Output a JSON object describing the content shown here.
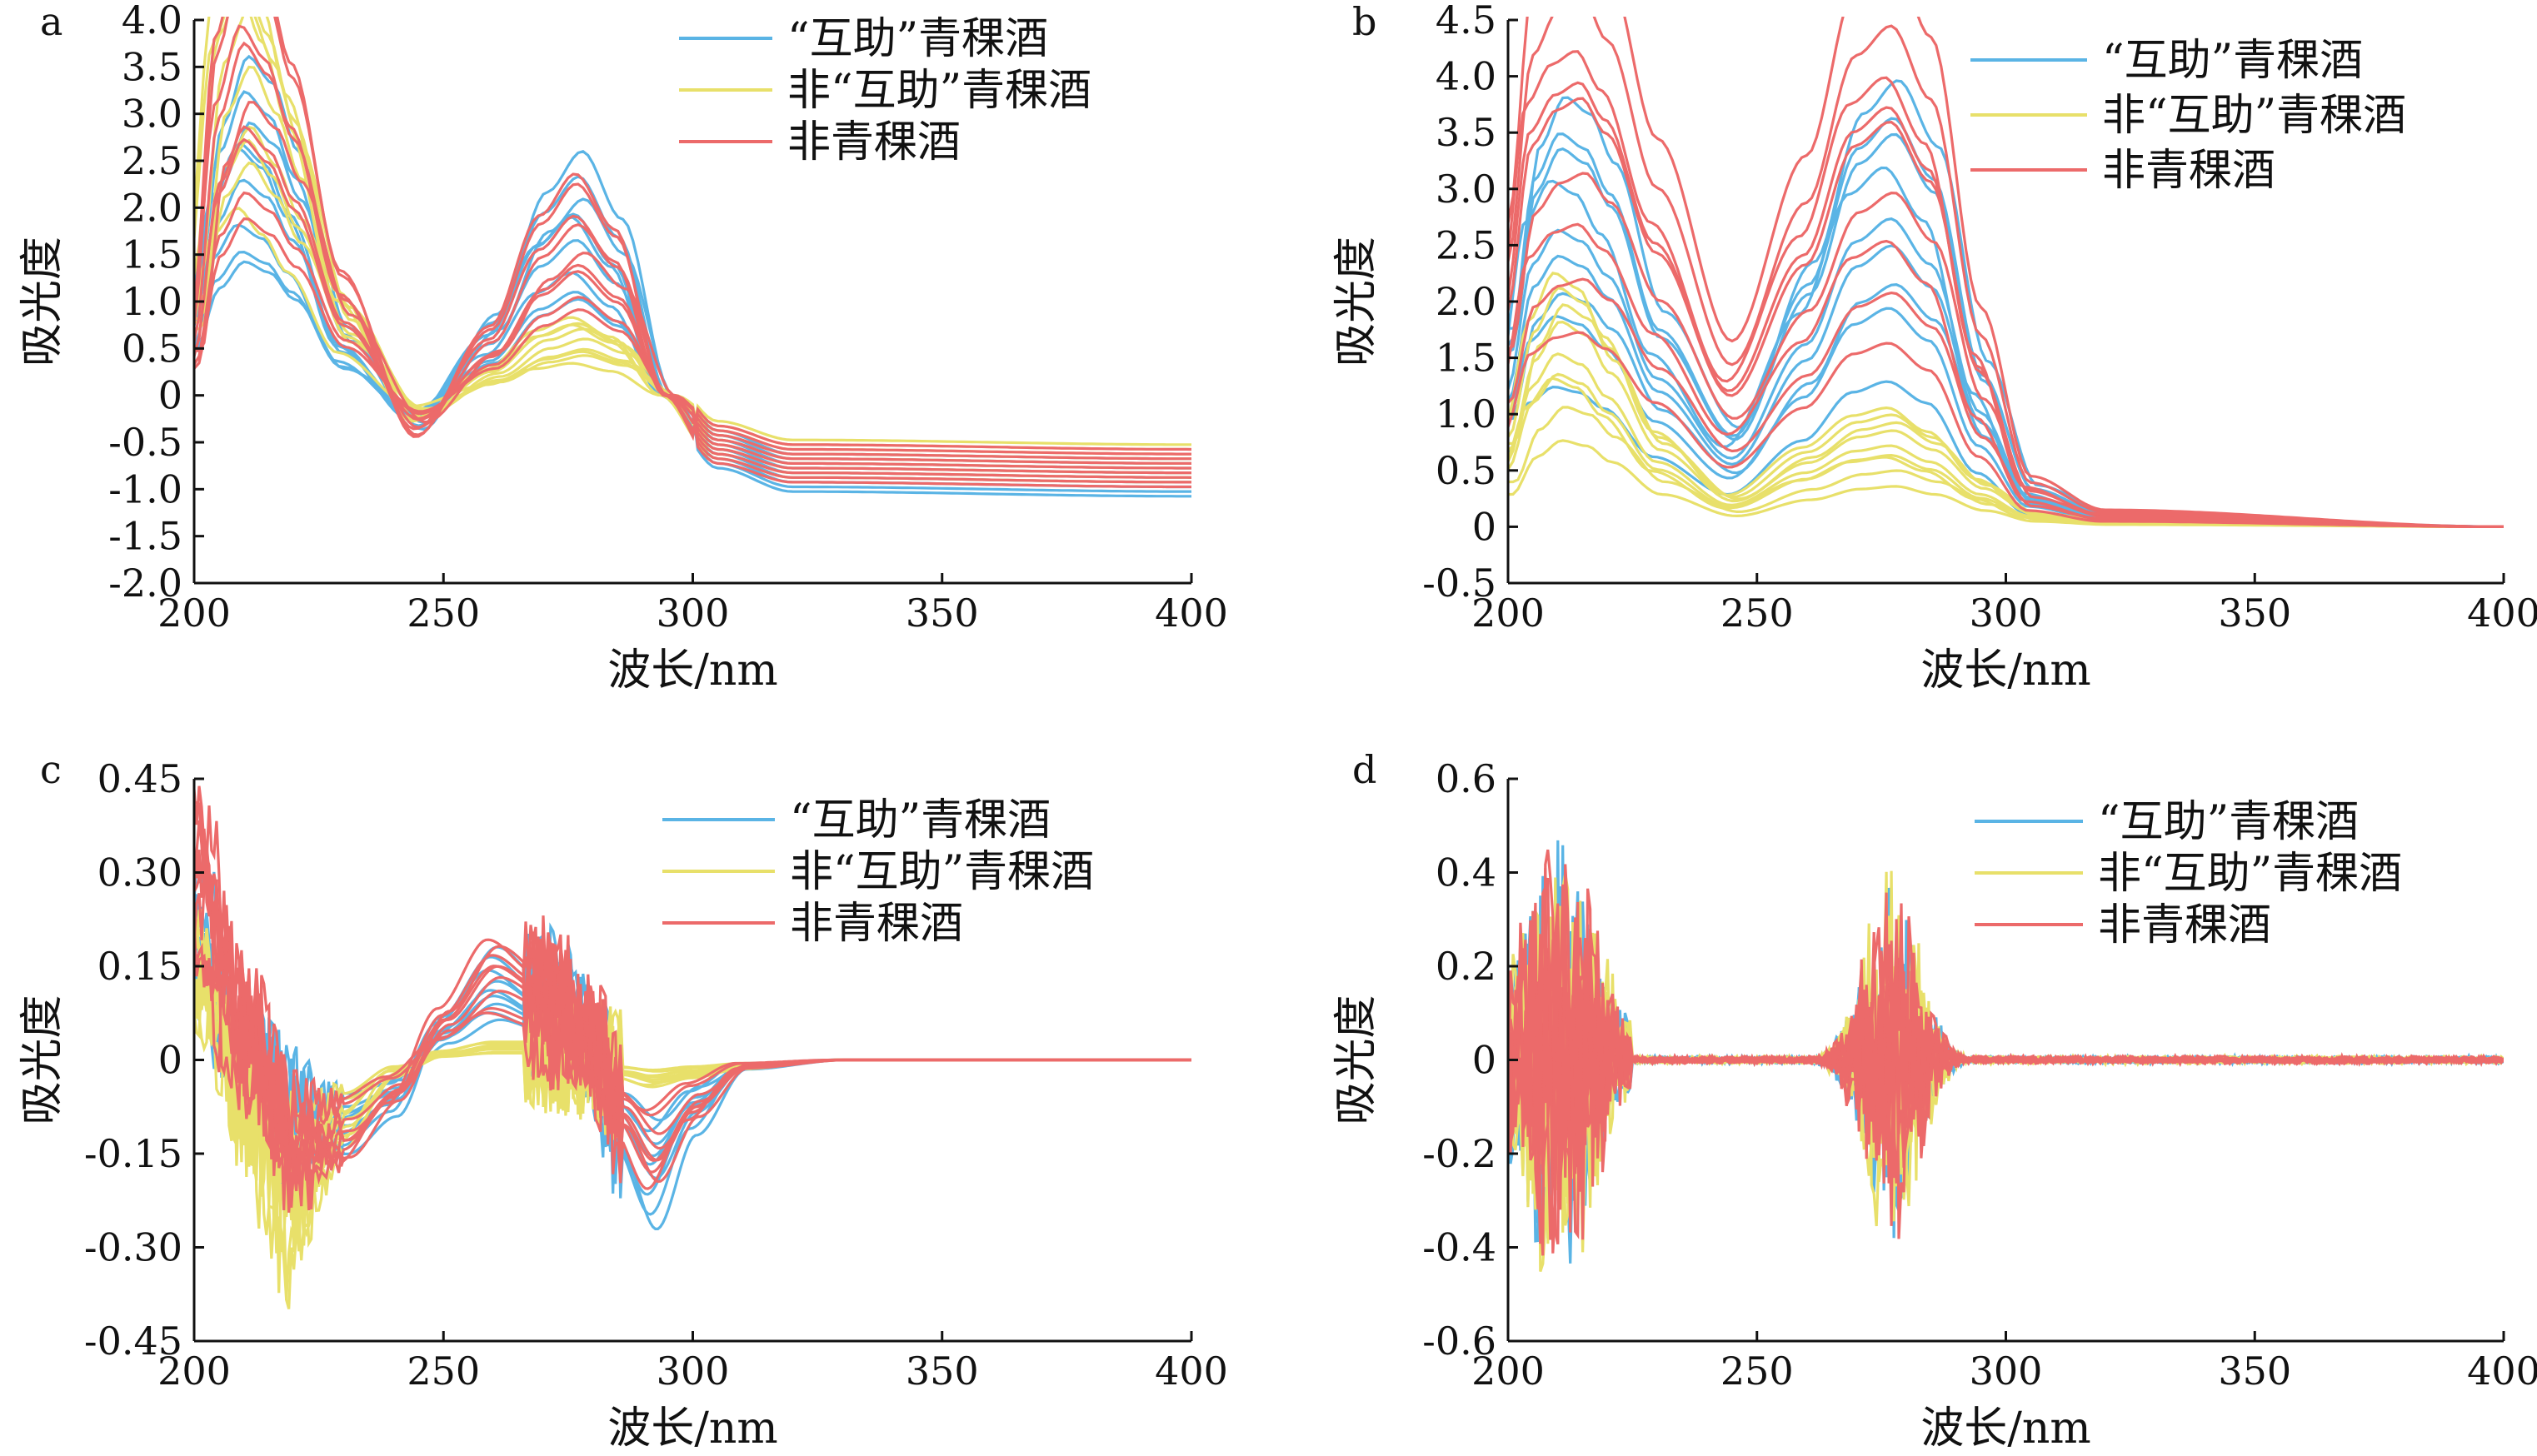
{
  "legend": [
    "“互助”青稞酒",
    "非“互助”青稞酒",
    "非青稞酒"
  ],
  "colors": {
    "huzhu": "#5ab4e5",
    "non_huzhu": "#e8e06a",
    "non_barley": "#ec6a6a"
  },
  "chart_data": [
    {
      "panel": "a",
      "type": "line",
      "xlabel": "波长/nm",
      "ylabel": "吸光度",
      "xlim": [
        200,
        400
      ],
      "ylim": [
        -2.0,
        4.0
      ],
      "xticks": [
        "200",
        "250",
        "300",
        "350",
        "400"
      ],
      "yticks": [
        "4.0",
        "3.5",
        "3.0",
        "2.5",
        "2.0",
        "1.5",
        "1.0",
        "0.5",
        "0",
        "-0.5",
        "-1.0",
        "-1.5",
        "-2.0"
      ],
      "series": [
        {
          "name": "“互助”青稞酒",
          "x": [
            200,
            205,
            210,
            215,
            220,
            230,
            245,
            260,
            270,
            277,
            285,
            295,
            305,
            320,
            400
          ],
          "y": [
            0.8,
            2.0,
            2.5,
            2.3,
            1.8,
            0.5,
            -0.25,
            0.6,
            1.5,
            1.8,
            1.3,
            0.0,
            -0.55,
            -0.8,
            -0.85
          ]
        },
        {
          "name": "非“互助”青稞酒",
          "x": [
            200,
            205,
            210,
            215,
            220,
            230,
            245,
            260,
            270,
            277,
            285,
            295,
            305,
            320,
            400
          ],
          "y": [
            1.0,
            3.0,
            3.5,
            3.0,
            2.3,
            0.8,
            -0.2,
            0.2,
            0.5,
            0.6,
            0.45,
            0.0,
            -0.45,
            -0.65,
            -0.7
          ]
        },
        {
          "name": "非青稞酒",
          "x": [
            200,
            205,
            210,
            215,
            220,
            230,
            245,
            260,
            270,
            277,
            285,
            295,
            305,
            320,
            400
          ],
          "y": [
            0.5,
            2.6,
            3.3,
            3.0,
            2.4,
            0.9,
            -0.3,
            0.5,
            1.3,
            1.6,
            1.2,
            0.0,
            -0.5,
            -0.7,
            -0.75
          ]
        }
      ]
    },
    {
      "panel": "b",
      "type": "line",
      "xlabel": "波长/nm",
      "ylabel": "吸光度",
      "xlim": [
        200,
        400
      ],
      "ylim": [
        -0.5,
        4.5
      ],
      "xticks": [
        "200",
        "250",
        "300",
        "350",
        "400"
      ],
      "yticks": [
        "4.5",
        "4.0",
        "3.5",
        "3.0",
        "2.5",
        "2.0",
        "1.5",
        "1.0",
        "0.5",
        "0",
        "-0.5"
      ],
      "series": [
        {
          "name": "“互助”青稞酒",
          "x": [
            200,
            205,
            210,
            215,
            220,
            230,
            245,
            260,
            270,
            277,
            285,
            295,
            305,
            320,
            400
          ],
          "y": [
            1.2,
            2.3,
            2.6,
            2.5,
            2.2,
            1.3,
            0.6,
            1.6,
            2.5,
            2.7,
            2.3,
            1.0,
            0.25,
            0.08,
            0.0
          ]
        },
        {
          "name": "非“互助”青稞酒",
          "x": [
            200,
            205,
            210,
            215,
            220,
            230,
            245,
            260,
            270,
            277,
            285,
            295,
            305,
            320,
            400
          ],
          "y": [
            0.6,
            1.3,
            1.6,
            1.5,
            1.2,
            0.6,
            0.2,
            0.5,
            0.7,
            0.75,
            0.6,
            0.3,
            0.1,
            0.04,
            0.0
          ]
        },
        {
          "name": "非青稞酒",
          "x": [
            200,
            205,
            210,
            215,
            220,
            230,
            245,
            260,
            270,
            277,
            285,
            295,
            305,
            320,
            400
          ],
          "y": [
            1.8,
            3.2,
            3.5,
            3.6,
            3.3,
            2.3,
            1.1,
            2.2,
            3.2,
            3.4,
            2.9,
            1.3,
            0.3,
            0.1,
            0.0
          ]
        }
      ]
    },
    {
      "panel": "c",
      "type": "line",
      "xlabel": "波长/nm",
      "ylabel": "吸光度",
      "xlim": [
        200,
        400
      ],
      "ylim": [
        -0.45,
        0.45
      ],
      "xticks": [
        "200",
        "250",
        "300",
        "350",
        "400"
      ],
      "yticks": [
        "0.45",
        "0.30",
        "0.15",
        "0",
        "-0.15",
        "-0.30",
        "-0.45"
      ],
      "series": [
        {
          "name": "“互助”青稞酒",
          "x": [
            200,
            210,
            220,
            230,
            240,
            250,
            260,
            270,
            280,
            285,
            292,
            300,
            310,
            330,
            400
          ],
          "y": [
            0.2,
            0.0,
            -0.1,
            -0.1,
            -0.06,
            0.05,
            0.12,
            0.08,
            0.02,
            -0.1,
            -0.18,
            -0.08,
            -0.01,
            0.0,
            0.0
          ]
        },
        {
          "name": "非“互助”青稞酒",
          "x": [
            200,
            210,
            220,
            230,
            240,
            250,
            260,
            270,
            280,
            285,
            292,
            300,
            310,
            330,
            400
          ],
          "y": [
            0.15,
            -0.05,
            -0.22,
            -0.1,
            -0.02,
            0.01,
            0.02,
            0.02,
            0.0,
            -0.02,
            -0.03,
            -0.02,
            -0.01,
            0.0,
            0.0
          ]
        },
        {
          "name": "非青稞酒",
          "x": [
            200,
            210,
            220,
            230,
            240,
            250,
            260,
            270,
            280,
            285,
            292,
            300,
            310,
            330,
            400
          ],
          "y": [
            0.3,
            0.05,
            -0.15,
            -0.12,
            -0.05,
            0.06,
            0.14,
            0.1,
            0.03,
            -0.08,
            -0.15,
            -0.07,
            -0.01,
            0.0,
            0.0
          ]
        }
      ]
    },
    {
      "panel": "d",
      "type": "line",
      "xlabel": "波长/nm",
      "ylabel": "吸光度",
      "xlim": [
        200,
        400
      ],
      "ylim": [
        -0.6,
        0.6
      ],
      "xticks": [
        "200",
        "250",
        "300",
        "350",
        "400"
      ],
      "yticks": [
        "0.6",
        "0.4",
        "0.2",
        "0",
        "-0.2",
        "-0.4",
        "-0.6"
      ],
      "series": [
        {
          "name": "“互助”青稞酒",
          "x": [
            200,
            225,
            240,
            260,
            265,
            277,
            290,
            300,
            400
          ],
          "y": [
            0.0,
            0.0,
            0.0,
            0.0,
            0.0,
            0.0,
            0.0,
            0.0,
            0.0
          ]
        },
        {
          "name": "非“互助”青稞酒",
          "x": [
            200,
            225,
            240,
            260,
            265,
            277,
            290,
            300,
            400
          ],
          "y": [
            0.0,
            0.0,
            0.0,
            0.0,
            0.0,
            0.0,
            0.0,
            0.0,
            0.0
          ]
        },
        {
          "name": "非青稞酒",
          "x": [
            200,
            225,
            240,
            260,
            265,
            277,
            290,
            300,
            400
          ],
          "y": [
            0.0,
            0.0,
            0.0,
            0.0,
            0.0,
            0.0,
            0.0,
            0.0,
            0.0
          ]
        }
      ]
    }
  ]
}
